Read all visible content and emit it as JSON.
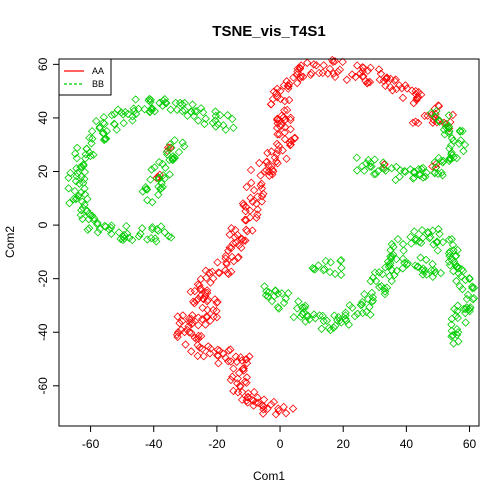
{
  "chart_data": {
    "type": "scatter",
    "title": "TSNE_vis_T4S1",
    "xlabel": "Com1",
    "ylabel": "Com2",
    "xlim": [
      -70,
      63
    ],
    "ylim": [
      -75,
      62
    ],
    "x_ticks": [
      -60,
      -40,
      -20,
      0,
      20,
      40,
      60
    ],
    "y_ticks": [
      -60,
      -40,
      -20,
      0,
      20,
      40,
      60
    ],
    "x_tick_labels": [
      "-60",
      "-40",
      "-20",
      "0",
      "20",
      "40",
      "60"
    ],
    "y_tick_labels": [
      "-60",
      "-40",
      "-20",
      "0",
      "20",
      "40",
      "60"
    ],
    "marker": "diamond-open",
    "grid": false,
    "legend": {
      "position": "top-left",
      "entries": [
        {
          "label": "AA",
          "color": "#ff0000",
          "style": "solid"
        },
        {
          "label": "BB",
          "color": "#00cd00",
          "style": "dashed"
        }
      ]
    },
    "series": [
      {
        "name": "AA",
        "color": "#ff0000",
        "path": [
          [
            2,
            -70
          ],
          [
            0,
            -69
          ],
          [
            -4,
            -68
          ],
          [
            -7,
            -66
          ],
          [
            -10,
            -63
          ],
          [
            -13,
            -62
          ],
          [
            -14,
            -58
          ],
          [
            -12,
            -54
          ],
          [
            -15,
            -50
          ],
          [
            -20,
            -48
          ],
          [
            -24,
            -46
          ],
          [
            -27,
            -44
          ],
          [
            -30,
            -40
          ],
          [
            -31,
            -36
          ],
          [
            -27,
            -35
          ],
          [
            -22,
            -34
          ],
          [
            -21,
            -30
          ],
          [
            -25,
            -27
          ],
          [
            -26,
            -23
          ],
          [
            -22,
            -20
          ],
          [
            -18,
            -16
          ],
          [
            -15,
            -11
          ],
          [
            -14,
            -6
          ],
          [
            -12,
            -1
          ],
          [
            -10,
            3
          ],
          [
            -9,
            8
          ],
          [
            -7,
            13
          ],
          [
            -6,
            18
          ],
          [
            -3,
            22
          ],
          [
            -1,
            26
          ],
          [
            2,
            30
          ],
          [
            3,
            34
          ],
          [
            1,
            38
          ],
          [
            -1,
            42
          ],
          [
            0,
            47
          ],
          [
            2,
            52
          ],
          [
            5,
            56
          ],
          [
            10,
            58
          ],
          [
            15,
            59
          ],
          [
            20,
            58
          ],
          [
            25,
            57
          ],
          [
            30,
            55
          ],
          [
            35,
            53
          ],
          [
            40,
            50
          ],
          [
            45,
            46
          ],
          [
            50,
            42
          ],
          [
            53,
            38
          ]
        ],
        "clusters": [
          [
            -35,
            28
          ],
          [
            -39,
            18
          ],
          [
            33,
            22
          ],
          [
            49,
            22
          ],
          [
            43,
            38
          ],
          [
            -10,
            -50
          ]
        ]
      },
      {
        "name": "BB",
        "color": "#00cd00",
        "path": [
          [
            -16,
            37
          ],
          [
            -21,
            40
          ],
          [
            -26,
            42
          ],
          [
            -31,
            44
          ],
          [
            -36,
            45
          ],
          [
            -42,
            45
          ],
          [
            -48,
            42
          ],
          [
            -53,
            39
          ],
          [
            -57,
            35
          ],
          [
            -60,
            30
          ],
          [
            -63,
            25
          ],
          [
            -64,
            20
          ],
          [
            -65,
            15
          ],
          [
            -64,
            10
          ],
          [
            -62,
            5
          ],
          [
            -60,
            2
          ],
          [
            -56,
            -1
          ],
          [
            -52,
            -3
          ],
          [
            -48,
            -3
          ],
          [
            -44,
            -3
          ],
          [
            -40,
            -3
          ],
          [
            -36,
            -4
          ]
        ],
        "path2": [
          [
            -42,
            10
          ],
          [
            -40,
            14
          ],
          [
            -38,
            18
          ],
          [
            -37,
            22
          ],
          [
            -36,
            25
          ],
          [
            -34,
            27
          ],
          [
            -31,
            30
          ]
        ],
        "path3": [
          [
            25,
            23
          ],
          [
            30,
            22
          ],
          [
            35,
            20
          ],
          [
            40,
            19
          ],
          [
            45,
            19
          ],
          [
            50,
            20
          ],
          [
            53,
            24
          ],
          [
            55,
            28
          ],
          [
            56,
            32
          ],
          [
            54,
            36
          ],
          [
            51,
            39
          ],
          [
            48,
            41
          ]
        ],
        "path4": [
          [
            -4,
            -23
          ],
          [
            0,
            -27
          ],
          [
            3,
            -30
          ],
          [
            8,
            -33
          ],
          [
            13,
            -36
          ],
          [
            18,
            -37
          ],
          [
            23,
            -34
          ],
          [
            27,
            -30
          ],
          [
            30,
            -25
          ],
          [
            33,
            -19
          ],
          [
            36,
            -13
          ],
          [
            38,
            -9
          ],
          [
            42,
            -6
          ],
          [
            47,
            -4
          ],
          [
            51,
            -6
          ],
          [
            54,
            -10
          ],
          [
            56,
            -15
          ],
          [
            58,
            -20
          ],
          [
            59,
            -25
          ],
          [
            58,
            -31
          ],
          [
            56,
            -36
          ],
          [
            54,
            -42
          ]
        ],
        "path5": [
          [
            10,
            -16
          ],
          [
            14,
            -15
          ],
          [
            18,
            -16
          ]
        ],
        "path6": [
          [
            39,
            -13
          ],
          [
            43,
            -15
          ],
          [
            47,
            -17
          ],
          [
            50,
            -19
          ]
        ]
      }
    ]
  }
}
